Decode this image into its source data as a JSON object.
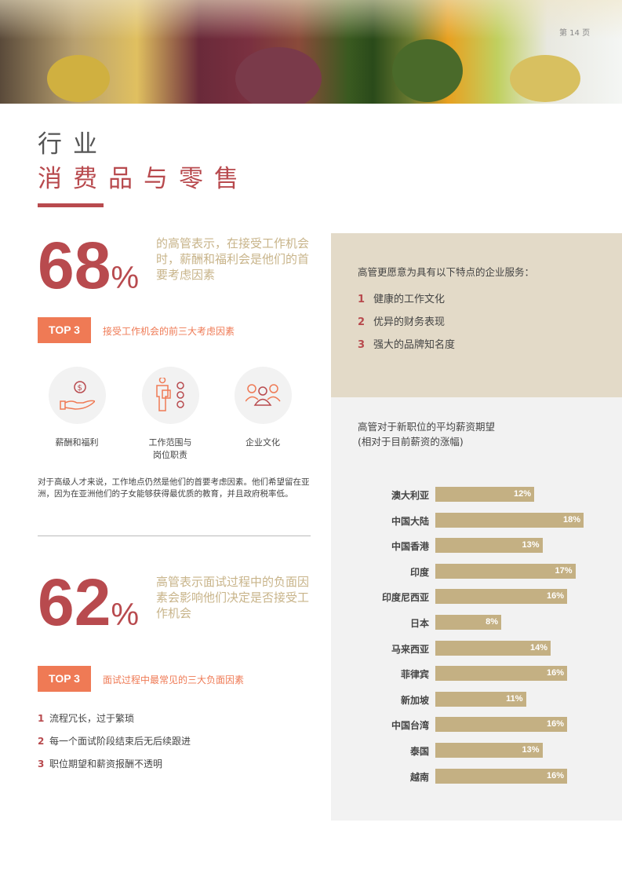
{
  "page_number": "第 14 页",
  "title": {
    "line1": "行业",
    "line2": "消费品与零售"
  },
  "stat1": {
    "value": "68",
    "unit": "%",
    "text": "的高管表示，在接受工作机会时，薪酬和福利会是他们的首要考虑因素"
  },
  "top3a": {
    "badge": "TOP 3",
    "label": "接受工作机会的前三大考虑因素",
    "items": [
      {
        "label": "薪酬和福利",
        "icon": "hand-dollar-icon"
      },
      {
        "label": "工作范围与\n岗位职责",
        "icon": "person-checklist-icon"
      },
      {
        "label": "企业文化",
        "icon": "people-group-icon"
      }
    ]
  },
  "paragraph": "对于高级人才来说，工作地点仍然是他们的首要考虑因素。他们希望留在亚洲，因为在亚洲他们的子女能够获得最优质的教育，并且政府税率低。",
  "stat2": {
    "value": "62",
    "unit": "%",
    "text": "高管表示面试过程中的负面因素会影响他们决定是否接受工作机会"
  },
  "top3b": {
    "badge": "TOP 3",
    "label": "面试过程中最常见的三大负面因素",
    "items": [
      {
        "n": "1",
        "text": "流程冗长，过于繁琐"
      },
      {
        "n": "2",
        "text": "每一个面试阶段结束后无后续跟进"
      },
      {
        "n": "3",
        "text": "职位期望和薪资报酬不透明"
      }
    ]
  },
  "preferences": {
    "heading": "高管更愿意为具有以下特点的企业服务：",
    "items": [
      {
        "n": "1",
        "text": "健康的工作文化"
      },
      {
        "n": "2",
        "text": "优异的财务表现"
      },
      {
        "n": "3",
        "text": "强大的品牌知名度"
      }
    ]
  },
  "chart_data": {
    "type": "bar",
    "orientation": "horizontal",
    "title": "高管对于新职位的平均薪资期望\n(相对于目前薪资的涨幅)",
    "categories": [
      "澳大利亚",
      "中国大陆",
      "中国香港",
      "印度",
      "印度尼西亚",
      "日本",
      "马来西亚",
      "菲律宾",
      "新加坡",
      "中国台湾",
      "泰国",
      "越南"
    ],
    "values": [
      12,
      18,
      13,
      17,
      16,
      8,
      14,
      16,
      11,
      16,
      13,
      16
    ],
    "labels": [
      "12%",
      "18%",
      "13%",
      "17%",
      "16%",
      "8%",
      "14%",
      "16%",
      "11%",
      "16%",
      "13%",
      "16%"
    ],
    "bar_color": "#c4b083"
  },
  "colors": {
    "accent": "#b84a4e",
    "orange": "#ef7a55",
    "tan": "#c8b48a"
  }
}
